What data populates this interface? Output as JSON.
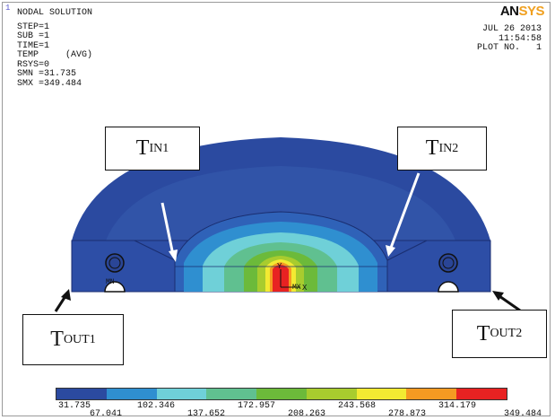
{
  "window": {
    "number": "1"
  },
  "brand": {
    "part_a": "AN",
    "part_b": "SYS"
  },
  "solution": {
    "title": "NODAL SOLUTION",
    "step": "STEP=1",
    "sub": "SUB =1",
    "time": "TIME=1",
    "temp": "TEMP     (AVG)",
    "rsys": "RSYS=0",
    "smn": "SMN =31.735",
    "smx": "SMX =349.484"
  },
  "plot_info": {
    "date": "JUL 26 2013",
    "time": "11:54:58",
    "plot_no": "PLOT NO.   1"
  },
  "callouts": {
    "tin1": {
      "main": "T",
      "sub": "IN1"
    },
    "tin2": {
      "main": "T",
      "sub": "IN2"
    },
    "tout1": {
      "main": "T",
      "sub": "OUT1"
    },
    "tout2": {
      "main": "T",
      "sub": "OUT2"
    }
  },
  "model_labels": {
    "mx": "MX",
    "y": "Y",
    "x": "X",
    "mn": "MN"
  },
  "legend": {
    "colors": [
      "#2b4aa0",
      "#2f8fd0",
      "#6fd0d8",
      "#60c090",
      "#6cba3a",
      "#a8cc2e",
      "#f2ea32",
      "#f59a22",
      "#e82222"
    ],
    "ticks_top": [
      "31.735",
      "102.346",
      "172.957",
      "243.568",
      "314.179"
    ],
    "ticks_bottom": [
      "67.041",
      "137.652",
      "208.263",
      "278.873",
      "349.484"
    ]
  }
}
